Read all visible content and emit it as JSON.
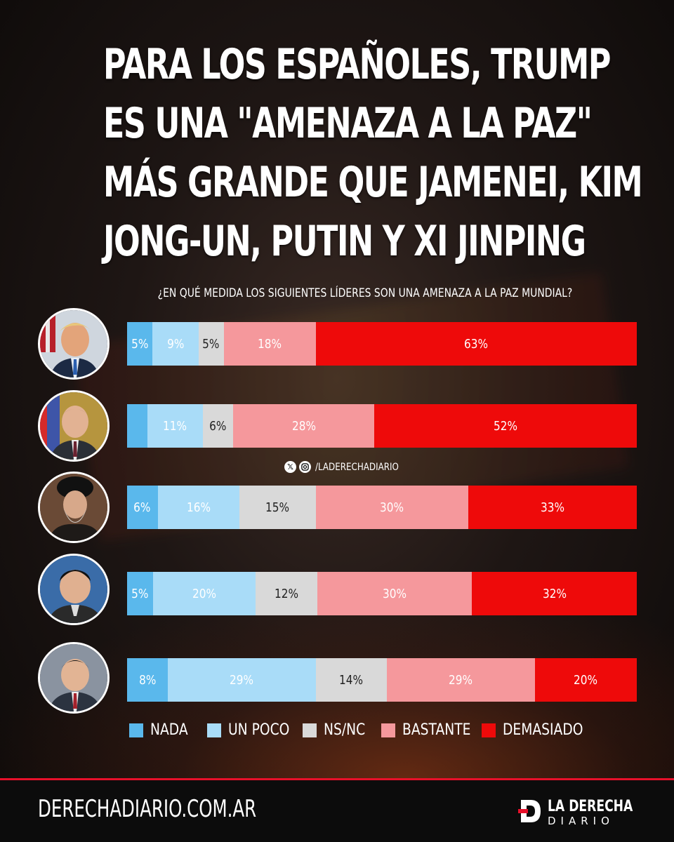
{
  "title_lines": [
    "PARA LOS ESPAÑOLES, TRUMP",
    "ES UNA \"AMENAZA A LA PAZ\"",
    "MÁS GRANDE QUE JAMENEI, KIM",
    "JONG-UN, PUTIN Y XI JINPING"
  ],
  "question": "¿EN QUÉ MEDIDA LOS SIGUIENTES LÍDERES SON UNA AMENAZA A LA PAZ MUNDIAL?",
  "social_handle": "/LADERECHADIARIO",
  "social_icons": [
    "x-icon",
    "instagram-icon"
  ],
  "footer": {
    "site": "DERECHADIARIO.COM.AR",
    "brand_line1": "LA DERECHA",
    "brand_line2": "DIARIO"
  },
  "colors": {
    "nada": "#5ab8ec",
    "un_poco": "#a9dcf8",
    "ns_nc": "#d9d9d9",
    "bastante": "#f5989c",
    "demasiado": "#ee0a0a",
    "accent": "#e8102a"
  },
  "chart_data": {
    "type": "bar",
    "orientation": "horizontal",
    "stacked": true,
    "normalized": true,
    "legend": {
      "position": "bottom",
      "entries": [
        "NADA",
        "UN POCO",
        "NS/NC",
        "BASTANTE",
        "DEMASIADO"
      ]
    },
    "rows": [
      {
        "avatar": "trump",
        "values": [
          5,
          9,
          5,
          18,
          63
        ],
        "labels": [
          "5%",
          "9%",
          "5%",
          "18%",
          "63%"
        ]
      },
      {
        "avatar": "putin",
        "values": [
          4,
          11,
          6,
          28,
          52
        ],
        "labels": [
          "",
          "11%",
          "6%",
          "28%",
          "52%"
        ]
      },
      {
        "avatar": "khamenei",
        "values": [
          6,
          16,
          15,
          30,
          33
        ],
        "labels": [
          "6%",
          "16%",
          "15%",
          "30%",
          "33%"
        ]
      },
      {
        "avatar": "kim",
        "values": [
          5,
          20,
          12,
          30,
          32
        ],
        "labels": [
          "5%",
          "20%",
          "12%",
          "30%",
          "32%"
        ]
      },
      {
        "avatar": "xi",
        "values": [
          8,
          29,
          14,
          29,
          20
        ],
        "labels": [
          "8%",
          "29%",
          "14%",
          "29%",
          "20%"
        ]
      }
    ]
  }
}
